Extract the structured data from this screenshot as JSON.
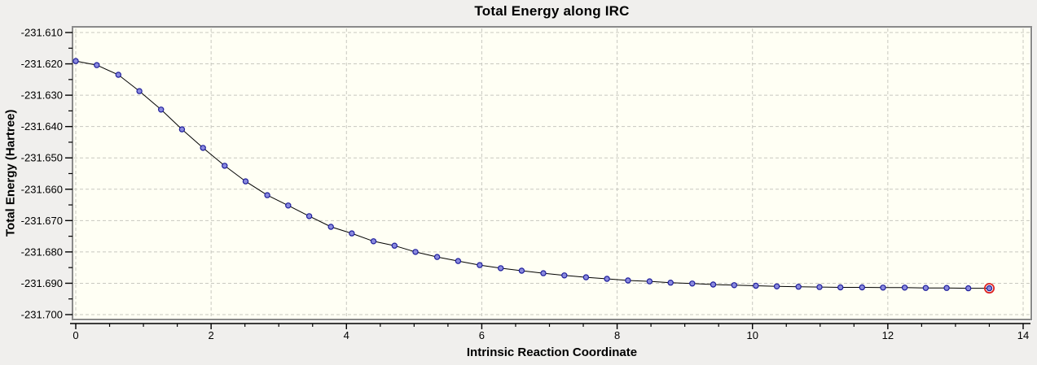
{
  "chart": {
    "title": "Total Energy along IRC",
    "xlabel": "Intrinsic Reaction Coordinate",
    "ylabel": "Total Energy (Hartree)"
  },
  "chart_data": {
    "type": "line",
    "title": "Total Energy along IRC",
    "xlabel": "Intrinsic Reaction Coordinate",
    "ylabel": "Total Energy (Hartree)",
    "xlim": [
      -0.08,
      14.12
    ],
    "ylim": [
      -231.7013,
      -231.6082
    ],
    "grid": "major-dashed",
    "legend": "none",
    "xticks_major": [
      0,
      2,
      4,
      6,
      8,
      10,
      12,
      14
    ],
    "xtick_labels": [
      "0",
      "2",
      "4",
      "6",
      "8",
      "10",
      "12",
      "14"
    ],
    "xtick_minor_step": 0.5,
    "yticks_major": [
      -231.61,
      -231.62,
      -231.63,
      -231.64,
      -231.65,
      -231.66,
      -231.67,
      -231.68,
      -231.69,
      -231.7
    ],
    "ytick_labels": [
      "-231.610",
      "-231.620",
      "-231.630",
      "-231.640",
      "-231.650",
      "-231.660",
      "-231.670",
      "-231.680",
      "-231.690",
      "-231.700"
    ],
    "ytick_minor_step": 0.005,
    "series": [
      {
        "name": "Total Energy",
        "marker": "circle",
        "x": [
          0,
          0.31,
          0.63,
          0.94,
          1.26,
          1.57,
          1.88,
          2.2,
          2.51,
          2.83,
          3.14,
          3.45,
          3.77,
          4.08,
          4.4,
          4.71,
          5.02,
          5.34,
          5.65,
          5.97,
          6.28,
          6.59,
          6.91,
          7.22,
          7.54,
          7.85,
          8.16,
          8.48,
          8.79,
          9.11,
          9.42,
          9.73,
          10.05,
          10.36,
          10.68,
          10.99,
          11.3,
          11.62,
          11.93,
          12.25,
          12.56,
          12.87,
          13.19,
          13.5
        ],
        "y": [
          -231.6191,
          -231.6204,
          -231.6235,
          -231.6287,
          -231.6346,
          -231.6409,
          -231.6468,
          -231.6525,
          -231.6575,
          -231.6619,
          -231.6652,
          -231.6686,
          -231.672,
          -231.6741,
          -231.6766,
          -231.678,
          -231.68,
          -231.6816,
          -231.6829,
          -231.6842,
          -231.6852,
          -231.686,
          -231.6868,
          -231.6875,
          -231.6881,
          -231.6886,
          -231.6891,
          -231.6894,
          -231.6898,
          -231.6901,
          -231.6904,
          -231.6906,
          -231.6908,
          -231.691,
          -231.6911,
          -231.6912,
          -231.6913,
          -231.6913,
          -231.6914,
          -231.6914,
          -231.6915,
          -231.6915,
          -231.6916,
          -231.6916
        ]
      }
    ],
    "highlight": {
      "type": "red-ring",
      "series": 0,
      "point_index": 43
    },
    "colors": {
      "outer_bg": "#f0efed",
      "plot_bg": "#fffff4",
      "frame": "#8a8a8a",
      "grid": "#c8c8c0",
      "line": "#000000",
      "marker_fill": "#8a8ade",
      "marker_edge": "#1e1e9c",
      "highlight_ring": "#dd2222",
      "text": "#000000"
    }
  }
}
